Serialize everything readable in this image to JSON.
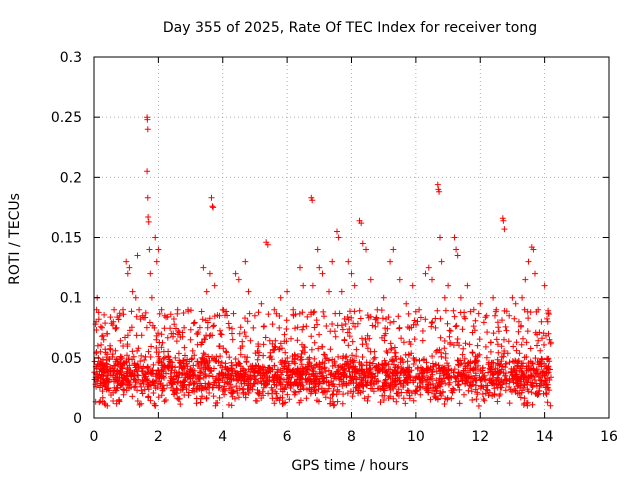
{
  "chart_data": {
    "type": "scatter",
    "title": "Day 355 of 2025, Rate Of TEC Index for receiver tong",
    "xlabel": "GPS time / hours",
    "ylabel": "ROTI / TECUs",
    "xlim": [
      0,
      16
    ],
    "ylim": [
      0,
      0.3
    ],
    "xticks": [
      0,
      2,
      4,
      6,
      8,
      10,
      12,
      14,
      16
    ],
    "yticks": [
      0,
      0.05,
      0.1,
      0.15,
      0.2,
      0.25,
      0.3
    ],
    "xtick_labels": [
      "0",
      "2",
      "4",
      "6",
      "8",
      "10",
      "12",
      "14",
      "16"
    ],
    "ytick_labels": [
      "0",
      "0.05",
      "0.1",
      "0.15",
      "0.2",
      "0.25",
      "0.3"
    ],
    "grid": true,
    "marker": "+",
    "color": "#ff0000",
    "series": [
      {
        "name": "ROTI",
        "points": [
          [
            0.02,
            0.032
          ],
          [
            0.05,
            0.078
          ],
          [
            0.08,
            0.09
          ],
          [
            0.1,
            0.1
          ],
          [
            0.12,
            0.06
          ],
          [
            0.15,
            0.082
          ],
          [
            0.2,
            0.055
          ],
          [
            0.25,
            0.075
          ],
          [
            0.3,
            0.065
          ],
          [
            0.4,
            0.07
          ],
          [
            0.5,
            0.06
          ],
          [
            0.6,
            0.08
          ],
          [
            0.7,
            0.075
          ],
          [
            0.8,
            0.085
          ],
          [
            0.9,
            0.09
          ],
          [
            1.0,
            0.13
          ],
          [
            1.05,
            0.12
          ],
          [
            1.1,
            0.125
          ],
          [
            1.2,
            0.105
          ],
          [
            1.3,
            0.1
          ],
          [
            1.35,
            0.135
          ],
          [
            1.4,
            0.09
          ],
          [
            1.5,
            0.085
          ],
          [
            1.65,
            0.25
          ],
          [
            1.66,
            0.248
          ],
          [
            1.67,
            0.24
          ],
          [
            1.65,
            0.205
          ],
          [
            1.67,
            0.183
          ],
          [
            1.68,
            0.167
          ],
          [
            1.7,
            0.163
          ],
          [
            1.72,
            0.14
          ],
          [
            1.75,
            0.12
          ],
          [
            1.8,
            0.1
          ],
          [
            1.9,
            0.15
          ],
          [
            1.95,
            0.13
          ],
          [
            2.0,
            0.14
          ],
          [
            2.1,
            0.09
          ],
          [
            2.2,
            0.085
          ],
          [
            2.4,
            0.07
          ],
          [
            2.6,
            0.09
          ],
          [
            2.8,
            0.075
          ],
          [
            3.0,
            0.065
          ],
          [
            3.2,
            0.07
          ],
          [
            3.4,
            0.125
          ],
          [
            3.5,
            0.105
          ],
          [
            3.6,
            0.12
          ],
          [
            3.65,
            0.183
          ],
          [
            3.68,
            0.176
          ],
          [
            3.7,
            0.175
          ],
          [
            3.75,
            0.11
          ],
          [
            3.9,
            0.085
          ],
          [
            4.0,
            0.09
          ],
          [
            4.2,
            0.075
          ],
          [
            4.4,
            0.12
          ],
          [
            4.5,
            0.115
          ],
          [
            4.7,
            0.13
          ],
          [
            4.8,
            0.105
          ],
          [
            5.0,
            0.085
          ],
          [
            5.2,
            0.095
          ],
          [
            5.35,
            0.146
          ],
          [
            5.4,
            0.144
          ],
          [
            5.6,
            0.09
          ],
          [
            5.8,
            0.1
          ],
          [
            6.0,
            0.105
          ],
          [
            6.2,
            0.085
          ],
          [
            6.4,
            0.125
          ],
          [
            6.5,
            0.11
          ],
          [
            6.75,
            0.183
          ],
          [
            6.78,
            0.181
          ],
          [
            6.8,
            0.11
          ],
          [
            6.95,
            0.14
          ],
          [
            7.0,
            0.125
          ],
          [
            7.1,
            0.12
          ],
          [
            7.3,
            0.105
          ],
          [
            7.4,
            0.13
          ],
          [
            7.55,
            0.155
          ],
          [
            7.6,
            0.15
          ],
          [
            7.7,
            0.105
          ],
          [
            7.9,
            0.13
          ],
          [
            8.0,
            0.12
          ],
          [
            8.1,
            0.11
          ],
          [
            8.25,
            0.164
          ],
          [
            8.3,
            0.162
          ],
          [
            8.35,
            0.145
          ],
          [
            8.45,
            0.14
          ],
          [
            8.6,
            0.115
          ],
          [
            8.8,
            0.09
          ],
          [
            9.0,
            0.1
          ],
          [
            9.2,
            0.13
          ],
          [
            9.3,
            0.14
          ],
          [
            9.5,
            0.115
          ],
          [
            9.7,
            0.095
          ],
          [
            9.9,
            0.11
          ],
          [
            10.1,
            0.09
          ],
          [
            10.3,
            0.12
          ],
          [
            10.4,
            0.125
          ],
          [
            10.5,
            0.115
          ],
          [
            10.68,
            0.194
          ],
          [
            10.7,
            0.19
          ],
          [
            10.72,
            0.188
          ],
          [
            10.75,
            0.15
          ],
          [
            10.8,
            0.13
          ],
          [
            10.9,
            0.1
          ],
          [
            11.0,
            0.11
          ],
          [
            11.2,
            0.15
          ],
          [
            11.25,
            0.14
          ],
          [
            11.3,
            0.135
          ],
          [
            11.4,
            0.1
          ],
          [
            11.6,
            0.11
          ],
          [
            11.8,
            0.09
          ],
          [
            12.0,
            0.095
          ],
          [
            12.2,
            0.085
          ],
          [
            12.4,
            0.1
          ],
          [
            12.5,
            0.09
          ],
          [
            12.7,
            0.166
          ],
          [
            12.72,
            0.164
          ],
          [
            12.75,
            0.157
          ],
          [
            12.9,
            0.085
          ],
          [
            13.0,
            0.1
          ],
          [
            13.1,
            0.095
          ],
          [
            13.2,
            0.08
          ],
          [
            13.3,
            0.1
          ],
          [
            13.4,
            0.115
          ],
          [
            13.5,
            0.13
          ],
          [
            13.6,
            0.142
          ],
          [
            13.65,
            0.14
          ],
          [
            13.7,
            0.12
          ],
          [
            13.8,
            0.09
          ],
          [
            13.9,
            0.08
          ],
          [
            14.0,
            0.11
          ],
          [
            14.1,
            0.08
          ],
          [
            14.12,
            0.07
          ],
          [
            14.15,
            0.065
          ]
        ],
        "dense_band": {
          "x_start": 0.0,
          "x_end": 14.2,
          "y_min": 0.01,
          "y_max": 0.06,
          "count": 2400
        }
      }
    ]
  }
}
